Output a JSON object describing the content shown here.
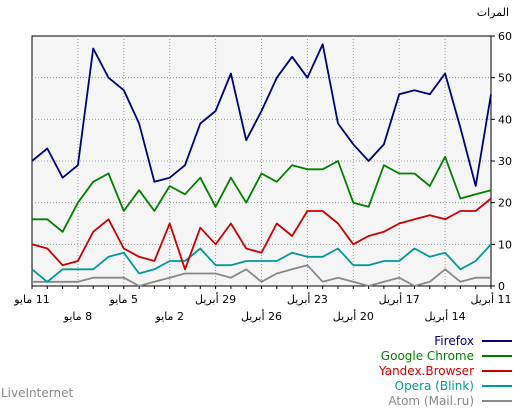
{
  "brand": "LiveInternet",
  "chart_data": {
    "type": "line",
    "ylabel": "المرات",
    "ylim": [
      0,
      60
    ],
    "yticks": [
      0,
      10,
      20,
      30,
      40,
      50,
      60
    ],
    "grid": true,
    "legend_position": "bottom-right",
    "x": [
      "11 مايو",
      "10 مايو",
      "9 مايو",
      "8 مايو",
      "7 مايو",
      "6 مايو",
      "5 مايو",
      "4 مايو",
      "3 مايو",
      "2 مايو",
      "1 مايو",
      "30 أبريل",
      "29 أبريل",
      "28 أبريل",
      "27 أبريل",
      "26 أبريل",
      "25 أبريل",
      "24 أبريل",
      "23 أبريل",
      "22 أبريل",
      "21 أبريل",
      "20 أبريل",
      "19 أبريل",
      "18 أبريل",
      "17 أبريل",
      "16 أبريل",
      "15 أبريل",
      "14 أبريل",
      "13 أبريل",
      "12 أبريل",
      "11 أبريل"
    ],
    "xtick_labels_upper": [
      {
        "index": 0,
        "label": "11 مايو"
      },
      {
        "index": 6,
        "label": "5 مايو"
      },
      {
        "index": 12,
        "label": "29 أبريل"
      },
      {
        "index": 18,
        "label": "23 أبريل"
      },
      {
        "index": 24,
        "label": "17 أبريل"
      },
      {
        "index": 30,
        "label": "11 أبريل"
      }
    ],
    "xtick_labels_lower": [
      {
        "index": 3,
        "label": "8 مايو"
      },
      {
        "index": 9,
        "label": "2 مايو"
      },
      {
        "index": 15,
        "label": "26 أبريل"
      },
      {
        "index": 21,
        "label": "20 أبريل"
      },
      {
        "index": 27,
        "label": "14 أبريل"
      }
    ],
    "series": [
      {
        "name": "Firefox",
        "color": "#000080",
        "values": [
          30,
          33,
          26,
          29,
          57,
          50,
          47,
          39,
          25,
          26,
          29,
          39,
          42,
          51,
          35,
          42,
          50,
          55,
          50,
          58,
          39,
          34,
          30,
          34,
          46,
          47,
          46,
          51,
          38,
          24,
          46
        ]
      },
      {
        "name": "Google Chrome",
        "color": "#008000",
        "values": [
          16,
          16,
          13,
          20,
          25,
          27,
          18,
          23,
          18,
          24,
          22,
          26,
          19,
          26,
          20,
          27,
          25,
          29,
          28,
          28,
          30,
          20,
          19,
          29,
          27,
          27,
          24,
          31,
          21,
          22,
          23
        ]
      },
      {
        "name": "Yandex.Browser",
        "color": "#cc0000",
        "values": [
          10,
          9,
          5,
          6,
          13,
          16,
          9,
          7,
          6,
          15,
          4,
          14,
          10,
          15,
          9,
          8,
          15,
          12,
          18,
          18,
          15,
          10,
          12,
          13,
          15,
          16,
          17,
          16,
          18,
          18,
          21
        ]
      },
      {
        "name": "Opera (Blink)",
        "color": "#009999",
        "values": [
          4,
          1,
          4,
          4,
          4,
          7,
          8,
          3,
          4,
          6,
          6,
          9,
          5,
          5,
          6,
          6,
          6,
          8,
          7,
          7,
          9,
          5,
          5,
          6,
          6,
          9,
          7,
          8,
          4,
          6,
          10
        ]
      },
      {
        "name": "Atom (Mail.ru)",
        "color": "#888888",
        "values": [
          1,
          1,
          1,
          1,
          2,
          2,
          2,
          0,
          1,
          2,
          3,
          3,
          3,
          2,
          4,
          1,
          3,
          4,
          5,
          1,
          2,
          1,
          0,
          1,
          2,
          0,
          1,
          4,
          1,
          2,
          2
        ]
      }
    ]
  }
}
